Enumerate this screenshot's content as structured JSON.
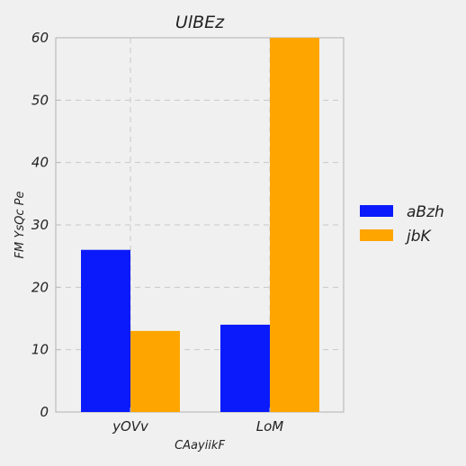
{
  "chart_data": {
    "type": "bar",
    "title": "UlBEz",
    "xlabel": "CAayiikF",
    "ylabel": "FM YsQc Pe",
    "categories": [
      "yOVv",
      "LoM"
    ],
    "series": [
      {
        "name": "aBzh",
        "values": [
          26,
          14
        ],
        "color": "#0a1afa"
      },
      {
        "name": "jbK",
        "values": [
          13,
          60
        ],
        "color": "#ffa500"
      }
    ],
    "ylim": [
      0,
      60
    ],
    "yticks": [
      0,
      10,
      20,
      30,
      40,
      50,
      60
    ],
    "grid": true,
    "legend_position": "right"
  }
}
